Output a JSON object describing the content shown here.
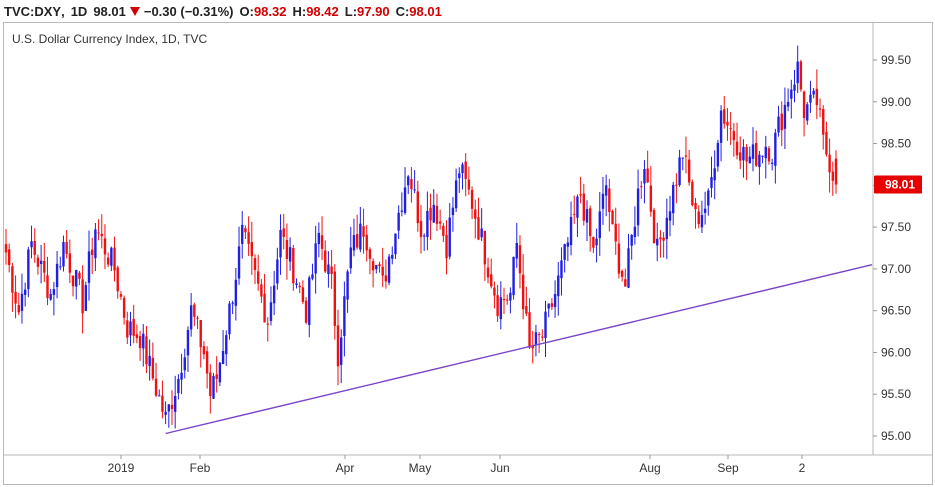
{
  "header": {
    "symbol": "TVC:DXY",
    "interval": "1D",
    "last": "98.01",
    "change": "−0.30 (−0.31%)",
    "o_label": "O:",
    "o_value": "98.32",
    "h_label": "H:",
    "h_value": "98.42",
    "l_label": "L:",
    "l_value": "97.90",
    "c_label": "C:",
    "c_value": "98.01"
  },
  "subtitle": "U.S. Dollar Currency Index, 1D, TVC",
  "colors": {
    "up": "#2020e0",
    "down": "#f01010",
    "trend": "#7a45c8",
    "price_tag": "#e60000"
  },
  "chart_data": {
    "type": "candlestick",
    "title": "U.S. Dollar Currency Index, 1D, TVC",
    "ylim": [
      94.85,
      99.85
    ],
    "y_ticks": [
      "95.00",
      "95.50",
      "96.00",
      "96.50",
      "97.00",
      "97.50",
      "98.00",
      "98.50",
      "99.00",
      "99.50"
    ],
    "x_ticks": [
      "2019",
      "Feb",
      "Apr",
      "May",
      "Jun",
      "Aug",
      "Sep",
      "2"
    ],
    "last_price_label": "98.01",
    "trendline": {
      "start": [
        0,
        95.03
      ],
      "end": [
        235,
        97.05
      ]
    },
    "close_path": [
      [
        0,
        97.2
      ],
      [
        4,
        96.5
      ],
      [
        8,
        97.3
      ],
      [
        14,
        96.7
      ],
      [
        18,
        97.3
      ],
      [
        24,
        96.6
      ],
      [
        28,
        97.5
      ],
      [
        34,
        97.0
      ],
      [
        38,
        96.3
      ],
      [
        42,
        96.2
      ],
      [
        46,
        95.7
      ],
      [
        50,
        95.2
      ],
      [
        54,
        95.7
      ],
      [
        58,
        96.5
      ],
      [
        62,
        96.0
      ],
      [
        64,
        95.5
      ],
      [
        66,
        95.7
      ],
      [
        70,
        96.5
      ],
      [
        74,
        97.4
      ],
      [
        78,
        96.9
      ],
      [
        82,
        96.4
      ],
      [
        86,
        97.4
      ],
      [
        90,
        97.0
      ],
      [
        94,
        96.5
      ],
      [
        98,
        97.4
      ],
      [
        102,
        96.8
      ],
      [
        104,
        96.0
      ],
      [
        108,
        97.2
      ],
      [
        112,
        97.5
      ],
      [
        118,
        96.8
      ],
      [
        122,
        97.5
      ],
      [
        126,
        98.2
      ],
      [
        130,
        97.5
      ],
      [
        134,
        97.8
      ],
      [
        138,
        97.3
      ],
      [
        142,
        98.2
      ],
      [
        146,
        97.8
      ],
      [
        150,
        97.2
      ],
      [
        154,
        96.6
      ],
      [
        158,
        96.7
      ],
      [
        160,
        97.3
      ],
      [
        164,
        96.0
      ],
      [
        168,
        96.2
      ],
      [
        172,
        96.7
      ],
      [
        176,
        97.3
      ],
      [
        180,
        97.9
      ],
      [
        184,
        97.2
      ],
      [
        188,
        98.0
      ],
      [
        190,
        97.4
      ],
      [
        194,
        96.8
      ],
      [
        198,
        97.9
      ],
      [
        200,
        98.3
      ],
      [
        204,
        97.2
      ],
      [
        208,
        97.8
      ],
      [
        212,
        98.4
      ],
      [
        216,
        97.6
      ],
      [
        220,
        97.8
      ],
      [
        224,
        98.9
      ],
      [
        228,
        98.6
      ],
      [
        232,
        98.3
      ],
      [
        236,
        98.4
      ],
      [
        238,
        98.5
      ],
      [
        240,
        98.4
      ],
      [
        242,
        98.7
      ],
      [
        246,
        99.2
      ],
      [
        248,
        99.4
      ],
      [
        250,
        98.9
      ],
      [
        254,
        99.0
      ],
      [
        256,
        98.5
      ],
      [
        258,
        98.3
      ],
      [
        260,
        98.01
      ]
    ]
  }
}
